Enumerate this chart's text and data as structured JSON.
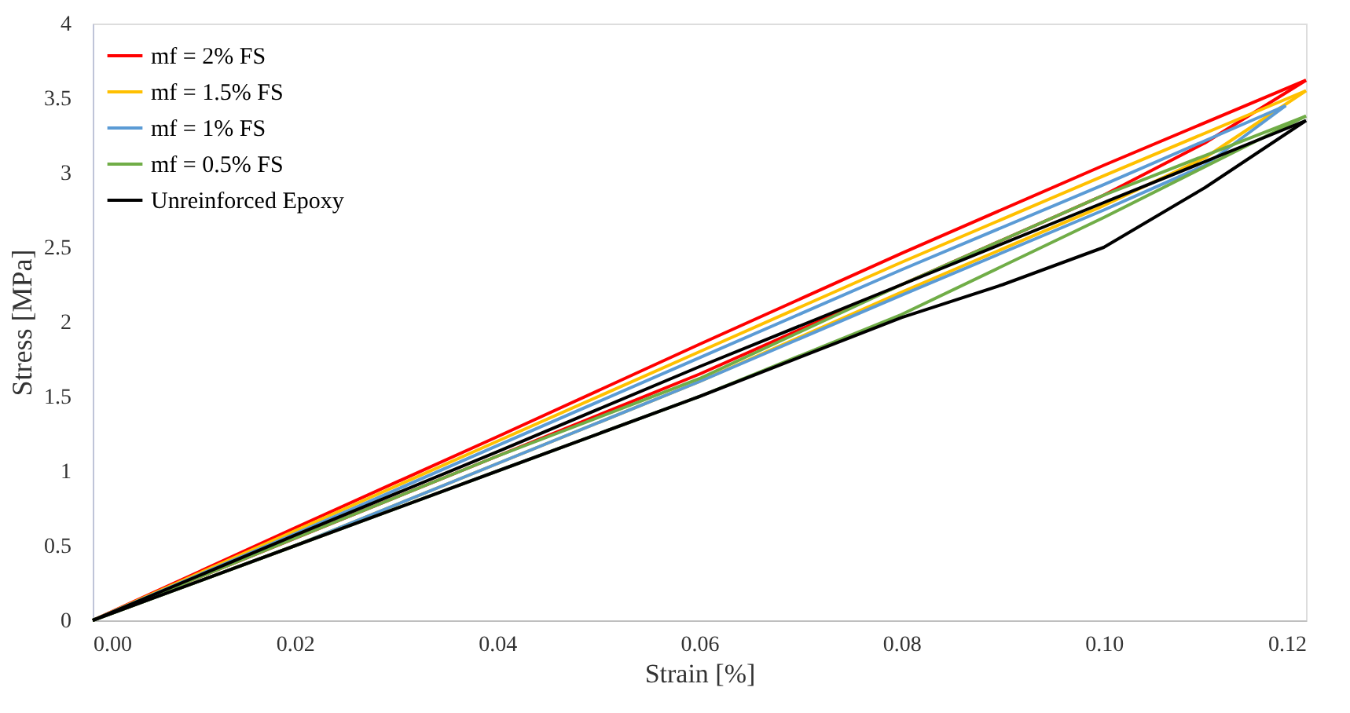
{
  "chart_data": {
    "type": "line",
    "xlabel": "Strain [%]",
    "ylabel": "Stress [MPa]",
    "xlim": [
      0,
      0.12
    ],
    "ylim": [
      0,
      4
    ],
    "xticks": [
      {
        "value": 0,
        "label": "0.00"
      },
      0.02,
      0.04,
      0.06,
      0.08,
      {
        "value": 0.1,
        "label": "0.10"
      },
      0.12
    ],
    "yticks": [
      0,
      0.5,
      1,
      1.5,
      2,
      2.5,
      3,
      3.5,
      4
    ],
    "grid": false,
    "legend": "top left",
    "marker": "none",
    "line_style": "solid",
    "series": [
      {
        "name": "mf = 2% FS",
        "color": "#ff0000",
        "x": [
          0,
          0.02,
          0.04,
          0.06,
          0.08,
          0.1,
          0.12
        ],
        "values": [
          0,
          0.62,
          1.23,
          1.85,
          2.46,
          3.05,
          3.62
        ]
      },
      {
        "color": "#ff0000",
        "x": [
          0,
          0.04,
          0.06,
          0.08,
          0.1,
          0.11,
          0.12
        ],
        "values": [
          0,
          1.1,
          1.65,
          2.25,
          2.85,
          3.2,
          3.62
        ]
      },
      {
        "name": "mf = 1.5% FS",
        "color": "#ffc000",
        "x": [
          0,
          0.02,
          0.04,
          0.06,
          0.08,
          0.1,
          0.12
        ],
        "values": [
          0,
          0.6,
          1.2,
          1.8,
          2.4,
          2.98,
          3.55
        ]
      },
      {
        "color": "#ffc000",
        "x": [
          0,
          0.02,
          0.04,
          0.06,
          0.08,
          0.1,
          0.11,
          0.12
        ],
        "values": [
          0,
          0.5,
          1.05,
          1.6,
          2.2,
          2.78,
          3.1,
          3.55
        ]
      },
      {
        "name": "mf = 1% FS",
        "color": "#5b9bd5",
        "x": [
          0,
          0.02,
          0.04,
          0.06,
          0.08,
          0.1,
          0.118
        ],
        "values": [
          0,
          0.58,
          1.17,
          1.76,
          2.35,
          2.92,
          3.45
        ]
      },
      {
        "color": "#5b9bd5",
        "x": [
          0,
          0.02,
          0.04,
          0.06,
          0.08,
          0.1,
          0.11,
          0.118
        ],
        "values": [
          0,
          0.5,
          1.05,
          1.6,
          2.18,
          2.75,
          3.05,
          3.45
        ]
      },
      {
        "name": "mf = 0.5% FS",
        "color": "#70ad47",
        "x": [
          0,
          0.02,
          0.04,
          0.06,
          0.08,
          0.1,
          0.12
        ],
        "values": [
          0,
          0.55,
          1.1,
          1.62,
          2.25,
          2.85,
          3.38
        ]
      },
      {
        "color": "#70ad47",
        "x": [
          0,
          0.02,
          0.04,
          0.06,
          0.08,
          0.1,
          0.12
        ],
        "values": [
          0,
          0.5,
          1.0,
          1.5,
          2.05,
          2.7,
          3.38
        ]
      },
      {
        "name": "Unreinforced Epoxy",
        "color": "#000000",
        "x": [
          0,
          0.02,
          0.04,
          0.06,
          0.08,
          0.1,
          0.12
        ],
        "values": [
          0,
          0.57,
          1.13,
          1.7,
          2.25,
          2.8,
          3.35
        ]
      },
      {
        "color": "#000000",
        "x": [
          0,
          0.02,
          0.04,
          0.06,
          0.08,
          0.09,
          0.1,
          0.11,
          0.12
        ],
        "values": [
          0,
          0.5,
          1.0,
          1.5,
          2.03,
          2.25,
          2.5,
          2.9,
          3.35
        ]
      }
    ]
  }
}
